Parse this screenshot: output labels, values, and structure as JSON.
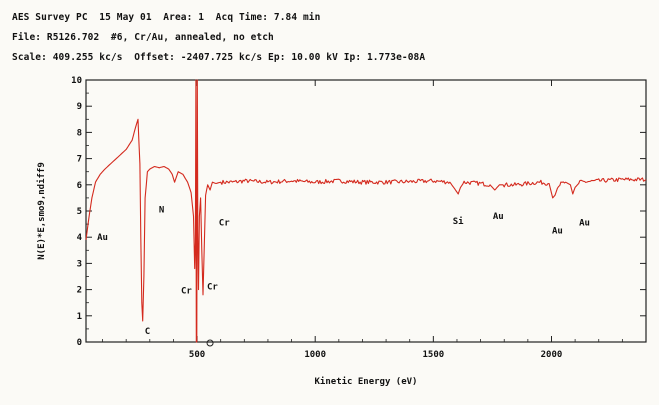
{
  "header": {
    "line1": "AES Survey PC  15 May 01  Area: 1  Acq Time: 7.84 min",
    "line2": "File: R5126.702  #6, Cr/Au, annealed, no etch",
    "line3": "Scale: 409.255 kc/s  Offset: -2407.725 kc/s Ep: 10.00 kV Ip: 1.773e-08A"
  },
  "chart_data": {
    "type": "line",
    "title": "",
    "xlabel": "Kinetic Energy (eV)",
    "ylabel": "N(E)*E,smo9,ndiff9",
    "xlim": [
      30,
      2400
    ],
    "ylim": [
      0,
      10
    ],
    "xticks": [
      500,
      1000,
      1500,
      2000
    ],
    "yticks": [
      0,
      1,
      2,
      3,
      4,
      5,
      6,
      7,
      8,
      9,
      10
    ],
    "grid": false,
    "color": "#d42a1e",
    "series": [
      {
        "x": [
          30,
          40,
          55,
          70,
          90,
          110,
          140,
          170,
          200,
          225,
          240,
          250,
          258,
          262,
          266,
          270,
          275,
          280,
          290,
          300,
          320,
          340,
          360,
          380,
          395,
          405,
          420,
          440,
          460,
          475,
          485,
          490,
          493,
          495,
          497,
          499,
          501,
          503,
          506,
          510,
          515,
          520,
          525,
          530,
          536,
          545,
          555,
          565,
          580,
          600,
          650,
          700,
          800,
          900,
          1000,
          1100,
          1200,
          1300,
          1400,
          1500,
          1570,
          1590,
          1605,
          1615,
          1630,
          1700,
          1740,
          1760,
          1780,
          1800,
          1850,
          1900,
          1950,
          1990,
          2005,
          2015,
          2030,
          2060,
          2080,
          2090,
          2100,
          2120,
          2200,
          2300,
          2400
        ],
        "y": [
          3.9,
          4.6,
          5.5,
          6.1,
          6.4,
          6.6,
          6.85,
          7.1,
          7.35,
          7.7,
          8.2,
          8.5,
          6.8,
          4.0,
          1.5,
          0.8,
          2.5,
          5.5,
          6.5,
          6.6,
          6.7,
          6.65,
          6.7,
          6.6,
          6.4,
          6.1,
          6.5,
          6.4,
          6.1,
          5.7,
          4.8,
          2.8,
          3.8,
          10.0,
          0.0,
          0.0,
          10.0,
          4.3,
          2.0,
          4.8,
          5.5,
          3.5,
          1.8,
          3.4,
          5.6,
          6.0,
          5.8,
          6.1,
          6.05,
          6.1,
          6.1,
          6.15,
          6.1,
          6.15,
          6.1,
          6.15,
          6.1,
          6.1,
          6.12,
          6.15,
          6.1,
          5.85,
          5.65,
          5.9,
          6.1,
          6.05,
          6.0,
          5.8,
          6.0,
          6.0,
          6.0,
          6.05,
          6.1,
          6.05,
          5.5,
          5.6,
          6.0,
          6.1,
          6.0,
          5.65,
          5.9,
          6.1,
          6.15,
          6.2,
          6.2
        ]
      }
    ],
    "annotations": [
      {
        "text": "Au",
        "x": 100,
        "y": 3.9
      },
      {
        "text": "C",
        "x": 290,
        "y": 0.3
      },
      {
        "text": "N",
        "x": 350,
        "y": 4.95
      },
      {
        "text": "Cr",
        "x": 455,
        "y": 1.85
      },
      {
        "text": "Cr",
        "x": 565,
        "y": 2.0
      },
      {
        "text": "Cr",
        "x": 615,
        "y": 4.45
      },
      {
        "text": "Si",
        "x": 1605,
        "y": 4.5
      },
      {
        "text": "Au",
        "x": 1775,
        "y": 4.7
      },
      {
        "text": "Au",
        "x": 2025,
        "y": 4.15
      },
      {
        "text": "Au",
        "x": 2140,
        "y": 4.45
      }
    ],
    "marker": {
      "x": 555,
      "y": 0
    }
  }
}
